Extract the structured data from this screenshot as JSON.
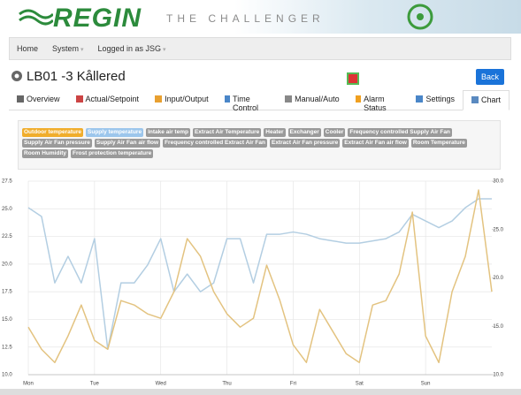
{
  "header": {
    "logo": "REGIN",
    "tagline": "THE CHALLENGER"
  },
  "nav": [
    "Home",
    "System",
    "Logged in as JSG"
  ],
  "page_title": "LB01 -3 Kållered",
  "back_button": "Back",
  "tabs": [
    "Overview",
    "Actual/Setpoint",
    "Input/Output",
    "Time Control",
    "Manual/Auto",
    "Alarm Status",
    "Settings",
    "Chart"
  ],
  "chart_data": {
    "type": "line",
    "x": [
      0,
      0.2,
      0.4,
      0.6,
      0.8,
      1.0,
      1.2,
      1.4,
      1.6,
      1.8,
      2.0,
      2.2,
      2.4,
      2.6,
      2.8,
      3.0,
      3.2,
      3.4,
      3.6,
      3.8,
      4.0,
      4.2,
      4.4,
      4.6,
      4.8,
      5.0,
      5.2,
      5.4,
      5.6,
      5.8,
      6.0,
      6.2,
      6.4,
      6.6,
      6.8,
      7.0
    ],
    "xlim": [
      0,
      7
    ],
    "xticks": [
      {
        "value": 0,
        "label": "Mon"
      },
      {
        "value": 1,
        "label": "Tue"
      },
      {
        "value": 2,
        "label": "Wed"
      },
      {
        "value": 3,
        "label": "Thu"
      },
      {
        "value": 4,
        "label": "Fri"
      },
      {
        "value": 5,
        "label": "Sat"
      },
      {
        "value": 6,
        "label": "Sun"
      }
    ],
    "ylim": [
      10,
      27.5
    ],
    "yticks": [
      {
        "value": 10,
        "label": "10.0"
      },
      12.5,
      {
        "value": 15,
        "label": "15.0"
      },
      17.5,
      {
        "value": 20,
        "label": "20.0"
      },
      22.5,
      {
        "value": 25,
        "label": "25.0"
      },
      27.5
    ],
    "y2lim": [
      10,
      30
    ],
    "y2ticks": [
      {
        "value": 10,
        "label": "10.0"
      },
      {
        "value": 15,
        "label": "15.0"
      },
      {
        "value": 20,
        "label": "20.0"
      },
      {
        "value": 25,
        "label": "25.0"
      },
      {
        "value": 30,
        "label": "30.0"
      }
    ],
    "grid": true,
    "series": [
      {
        "name": "Outdoor temperature",
        "color": "#e3c380",
        "legend_color": "#f0ad2c",
        "values": [
          14.3,
          12.3,
          11.1,
          13.5,
          16.3,
          13.1,
          12.3,
          16.7,
          16.3,
          15.5,
          15.1,
          17.5,
          22.3,
          20.7,
          17.5,
          15.5,
          14.3,
          15.1,
          19.9,
          16.7,
          12.7,
          11.1,
          15.9,
          13.9,
          11.9,
          11.1,
          16.3,
          16.7,
          19.1,
          24.7,
          13.5,
          11.1,
          17.5,
          20.7,
          26.7,
          17.5
        ]
      },
      {
        "name": "Supply temperature",
        "color": "#b3cee2",
        "legend_color": "#9cc6ec",
        "values": [
          25.1,
          24.3,
          18.3,
          20.7,
          18.3,
          22.3,
          12.3,
          18.3,
          18.3,
          19.9,
          22.3,
          17.5,
          19.1,
          17.5,
          18.3,
          22.3,
          22.3,
          18.3,
          22.7,
          22.7,
          22.9,
          22.7,
          22.3,
          22.1,
          21.9,
          21.9,
          22.1,
          22.3,
          22.9,
          24.5,
          23.9,
          23.3,
          23.9,
          25.1,
          25.9,
          25.9
        ]
      }
    ],
    "inactive_color": "#9a9a9a",
    "inactive_series": [
      "Intake air temp",
      "Extract Air Temperature",
      "Heater",
      "Exchanger",
      "Cooler",
      "Frequency controlled Supply Air Fan",
      "Supply Air Fan pressure",
      "Supply Air Fan air flow",
      "Frequency controlled Extract Air Fan",
      "Extract Air Fan pressure",
      "Extract Air Fan air flow",
      "Room Temperature",
      "Room Humidity",
      "Frost protection temperature"
    ]
  }
}
